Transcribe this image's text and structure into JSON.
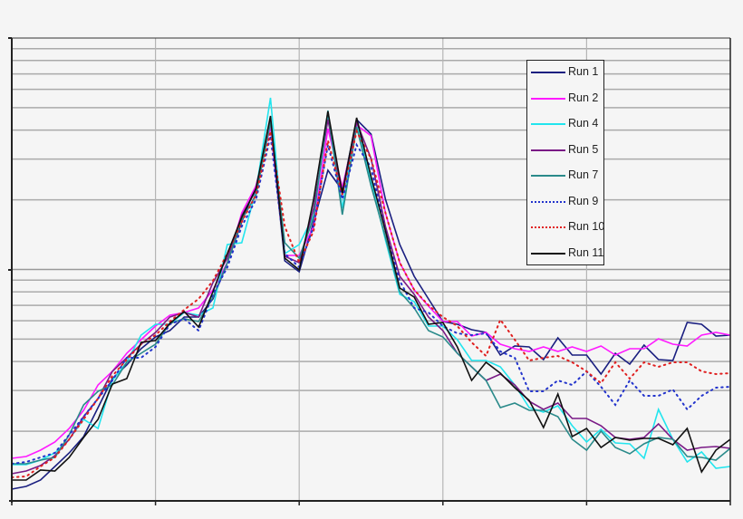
{
  "chart_data": {
    "type": "line",
    "title": "",
    "xlabel": "",
    "ylabel": "",
    "yscale": "log",
    "ylim": [
      1,
      100
    ],
    "y_note": "No tick labels shown; values are relative, reconstructed from a 2-decade log grid (decade line at 10)",
    "x_tick_count": 6,
    "x": [
      0,
      1,
      2,
      3,
      4,
      5,
      6,
      7,
      8,
      9,
      10,
      11,
      12,
      13,
      14,
      15,
      16,
      17,
      18,
      19,
      20,
      21,
      22,
      23,
      24,
      25,
      26,
      27,
      28,
      29,
      30,
      31,
      32,
      33,
      34,
      35,
      36,
      37,
      38,
      39,
      40,
      41,
      42,
      43,
      44,
      45,
      46,
      47,
      48,
      49,
      50
    ],
    "grid": {
      "horizontal": "log-minor",
      "vertical": true
    },
    "legend_position": "upper-right-inset",
    "series": [
      {
        "name": "Run 1",
        "color": "#1a1f80",
        "dash": "solid",
        "width": 1.6,
        "ypx": [
          540,
          537,
          530,
          515,
          500,
          482,
          450,
          418,
          403,
          385,
          372,
          365,
          350,
          350,
          330,
          290,
          245,
          205,
          138,
          288,
          300,
          245,
          188,
          210,
          132,
          148,
          220,
          270,
          305,
          330,
          355,
          358,
          364,
          367,
          392,
          382,
          383,
          397,
          373,
          392,
          392,
          413,
          390,
          402,
          381,
          397,
          398,
          356,
          358,
          371,
          370
        ]
      },
      {
        "name": "Run 2",
        "color": "#ff1aff",
        "dash": "solid",
        "width": 1.6,
        "ypx": [
          506,
          504,
          497,
          488,
          473,
          453,
          425,
          410,
          390,
          375,
          360,
          348,
          345,
          340,
          320,
          290,
          235,
          205,
          140,
          282,
          282,
          250,
          142,
          207,
          138,
          150,
          235,
          290,
          320,
          338,
          355,
          355,
          371,
          367,
          380,
          385,
          388,
          383,
          388,
          383,
          388,
          382,
          392,
          385,
          385,
          374,
          380,
          382,
          370,
          367,
          370
        ]
      },
      {
        "name": "Run 4",
        "color": "#22e5ee",
        "dash": "solid",
        "width": 1.6,
        "ypx": [
          513,
          513,
          508,
          500,
          485,
          463,
          473,
          420,
          400,
          370,
          358,
          358,
          345,
          348,
          340,
          270,
          268,
          210,
          108,
          280,
          270,
          238,
          128,
          230,
          133,
          200,
          265,
          325,
          333,
          360,
          360,
          375,
          398,
          398,
          405,
          425,
          450,
          455,
          448,
          470,
          488,
          474,
          489,
          490,
          506,
          452,
          485,
          510,
          499,
          517,
          515
        ]
      },
      {
        "name": "Run 5",
        "color": "#7a1a86",
        "dash": "solid",
        "width": 1.6,
        "ypx": [
          523,
          520,
          514,
          503,
          485,
          460,
          440,
          410,
          395,
          380,
          367,
          350,
          345,
          350,
          312,
          285,
          238,
          210,
          133,
          283,
          290,
          230,
          132,
          215,
          135,
          175,
          250,
          305,
          325,
          350,
          365,
          390,
          405,
          420,
          413,
          425,
          443,
          452,
          445,
          462,
          462,
          470,
          483,
          485,
          483,
          468,
          485,
          497,
          494,
          493,
          495
        ]
      },
      {
        "name": "Run 7",
        "color": "#2a8a8a",
        "dash": "solid",
        "width": 1.6,
        "ypx": [
          512,
          512,
          508,
          505,
          480,
          447,
          432,
          425,
          400,
          390,
          380,
          357,
          352,
          355,
          328,
          290,
          243,
          215,
          135,
          268,
          285,
          240,
          122,
          237,
          140,
          205,
          262,
          322,
          340,
          365,
          372,
          390,
          405,
          420,
          450,
          445,
          453,
          453,
          460,
          485,
          497,
          476,
          494,
          501,
          490,
          483,
          485,
          504,
          505,
          508,
          495
        ]
      },
      {
        "name": "Run 9",
        "color": "#2233cc",
        "dash": "dotted",
        "width": 2,
        "ypx": [
          512,
          510,
          505,
          500,
          480,
          460,
          440,
          420,
          395,
          395,
          383,
          358,
          352,
          365,
          325,
          295,
          250,
          220,
          150,
          280,
          295,
          250,
          160,
          220,
          160,
          185,
          255,
          310,
          340,
          345,
          360,
          368,
          370,
          368,
          388,
          395,
          432,
          432,
          420,
          425,
          410,
          427,
          447,
          420,
          437,
          437,
          430,
          452,
          437,
          428,
          427
        ]
      },
      {
        "name": "Run 10",
        "color": "#e02020",
        "dash": "dotted",
        "width": 2,
        "ypx": [
          527,
          526,
          515,
          505,
          485,
          463,
          440,
          415,
          397,
          380,
          370,
          355,
          342,
          330,
          310,
          280,
          245,
          215,
          145,
          250,
          290,
          255,
          155,
          215,
          145,
          175,
          235,
          290,
          320,
          337,
          350,
          360,
          378,
          393,
          353,
          375,
          398,
          395,
          393,
          400,
          410,
          423,
          400,
          418,
          400,
          405,
          400,
          400,
          410,
          413,
          412
        ]
      },
      {
        "name": "Run 11",
        "color": "#111111",
        "dash": "solid",
        "width": 1.6,
        "ypx": [
          530,
          530,
          519,
          520,
          505,
          483,
          463,
          424,
          418,
          378,
          376,
          357,
          344,
          361,
          322,
          280,
          240,
          208,
          128,
          285,
          298,
          220,
          123,
          213,
          130,
          195,
          255,
          318,
          328,
          358,
          356,
          383,
          420,
          400,
          412,
          428,
          442,
          472,
          435,
          482,
          473,
          494,
          483,
          486,
          484,
          484,
          491,
          473,
          521,
          497,
          485
        ]
      }
    ]
  },
  "legend": {
    "items": [
      {
        "label": "Run 1"
      },
      {
        "label": "Run 2"
      },
      {
        "label": "Run 4"
      },
      {
        "label": "Run 5"
      },
      {
        "label": "Run 7"
      },
      {
        "label": "Run 9"
      },
      {
        "label": "Run 10"
      },
      {
        "label": "Run 11"
      }
    ]
  }
}
